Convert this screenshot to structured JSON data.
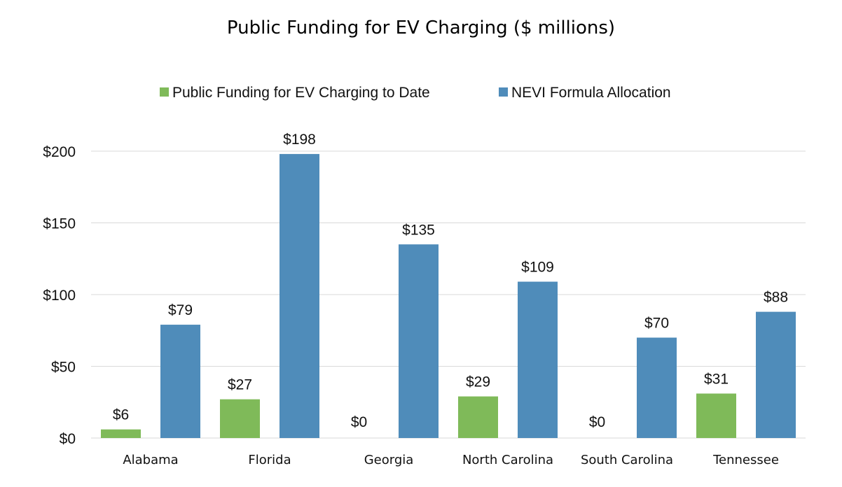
{
  "chart_data": {
    "type": "bar",
    "title": "Public Funding for EV Charging ($ millions)",
    "xlabel": "",
    "ylabel": "",
    "categories": [
      "Alabama",
      "Florida",
      "Georgia",
      "North Carolina",
      "South Carolina",
      "Tennessee"
    ],
    "series": [
      {
        "name": "Public Funding for EV Charging to Date",
        "color": "#7fba59",
        "values": [
          6,
          27,
          0,
          29,
          0,
          31
        ],
        "labels": [
          "$6",
          "$27",
          "$0",
          "$29",
          "$0",
          "$31"
        ]
      },
      {
        "name": "NEVI Formula Allocation",
        "color": "#4f8cba",
        "values": [
          79,
          198,
          135,
          109,
          70,
          88
        ],
        "labels": [
          "$79",
          "$198",
          "$135",
          "$109",
          "$70",
          "$88"
        ]
      }
    ],
    "ylim": [
      0,
      200
    ],
    "yticks": [
      0,
      50,
      100,
      150,
      200
    ],
    "ytick_labels": [
      "$0",
      "$50",
      "$100",
      "$150",
      "$200"
    ],
    "grid": true,
    "legend_position": "top"
  }
}
